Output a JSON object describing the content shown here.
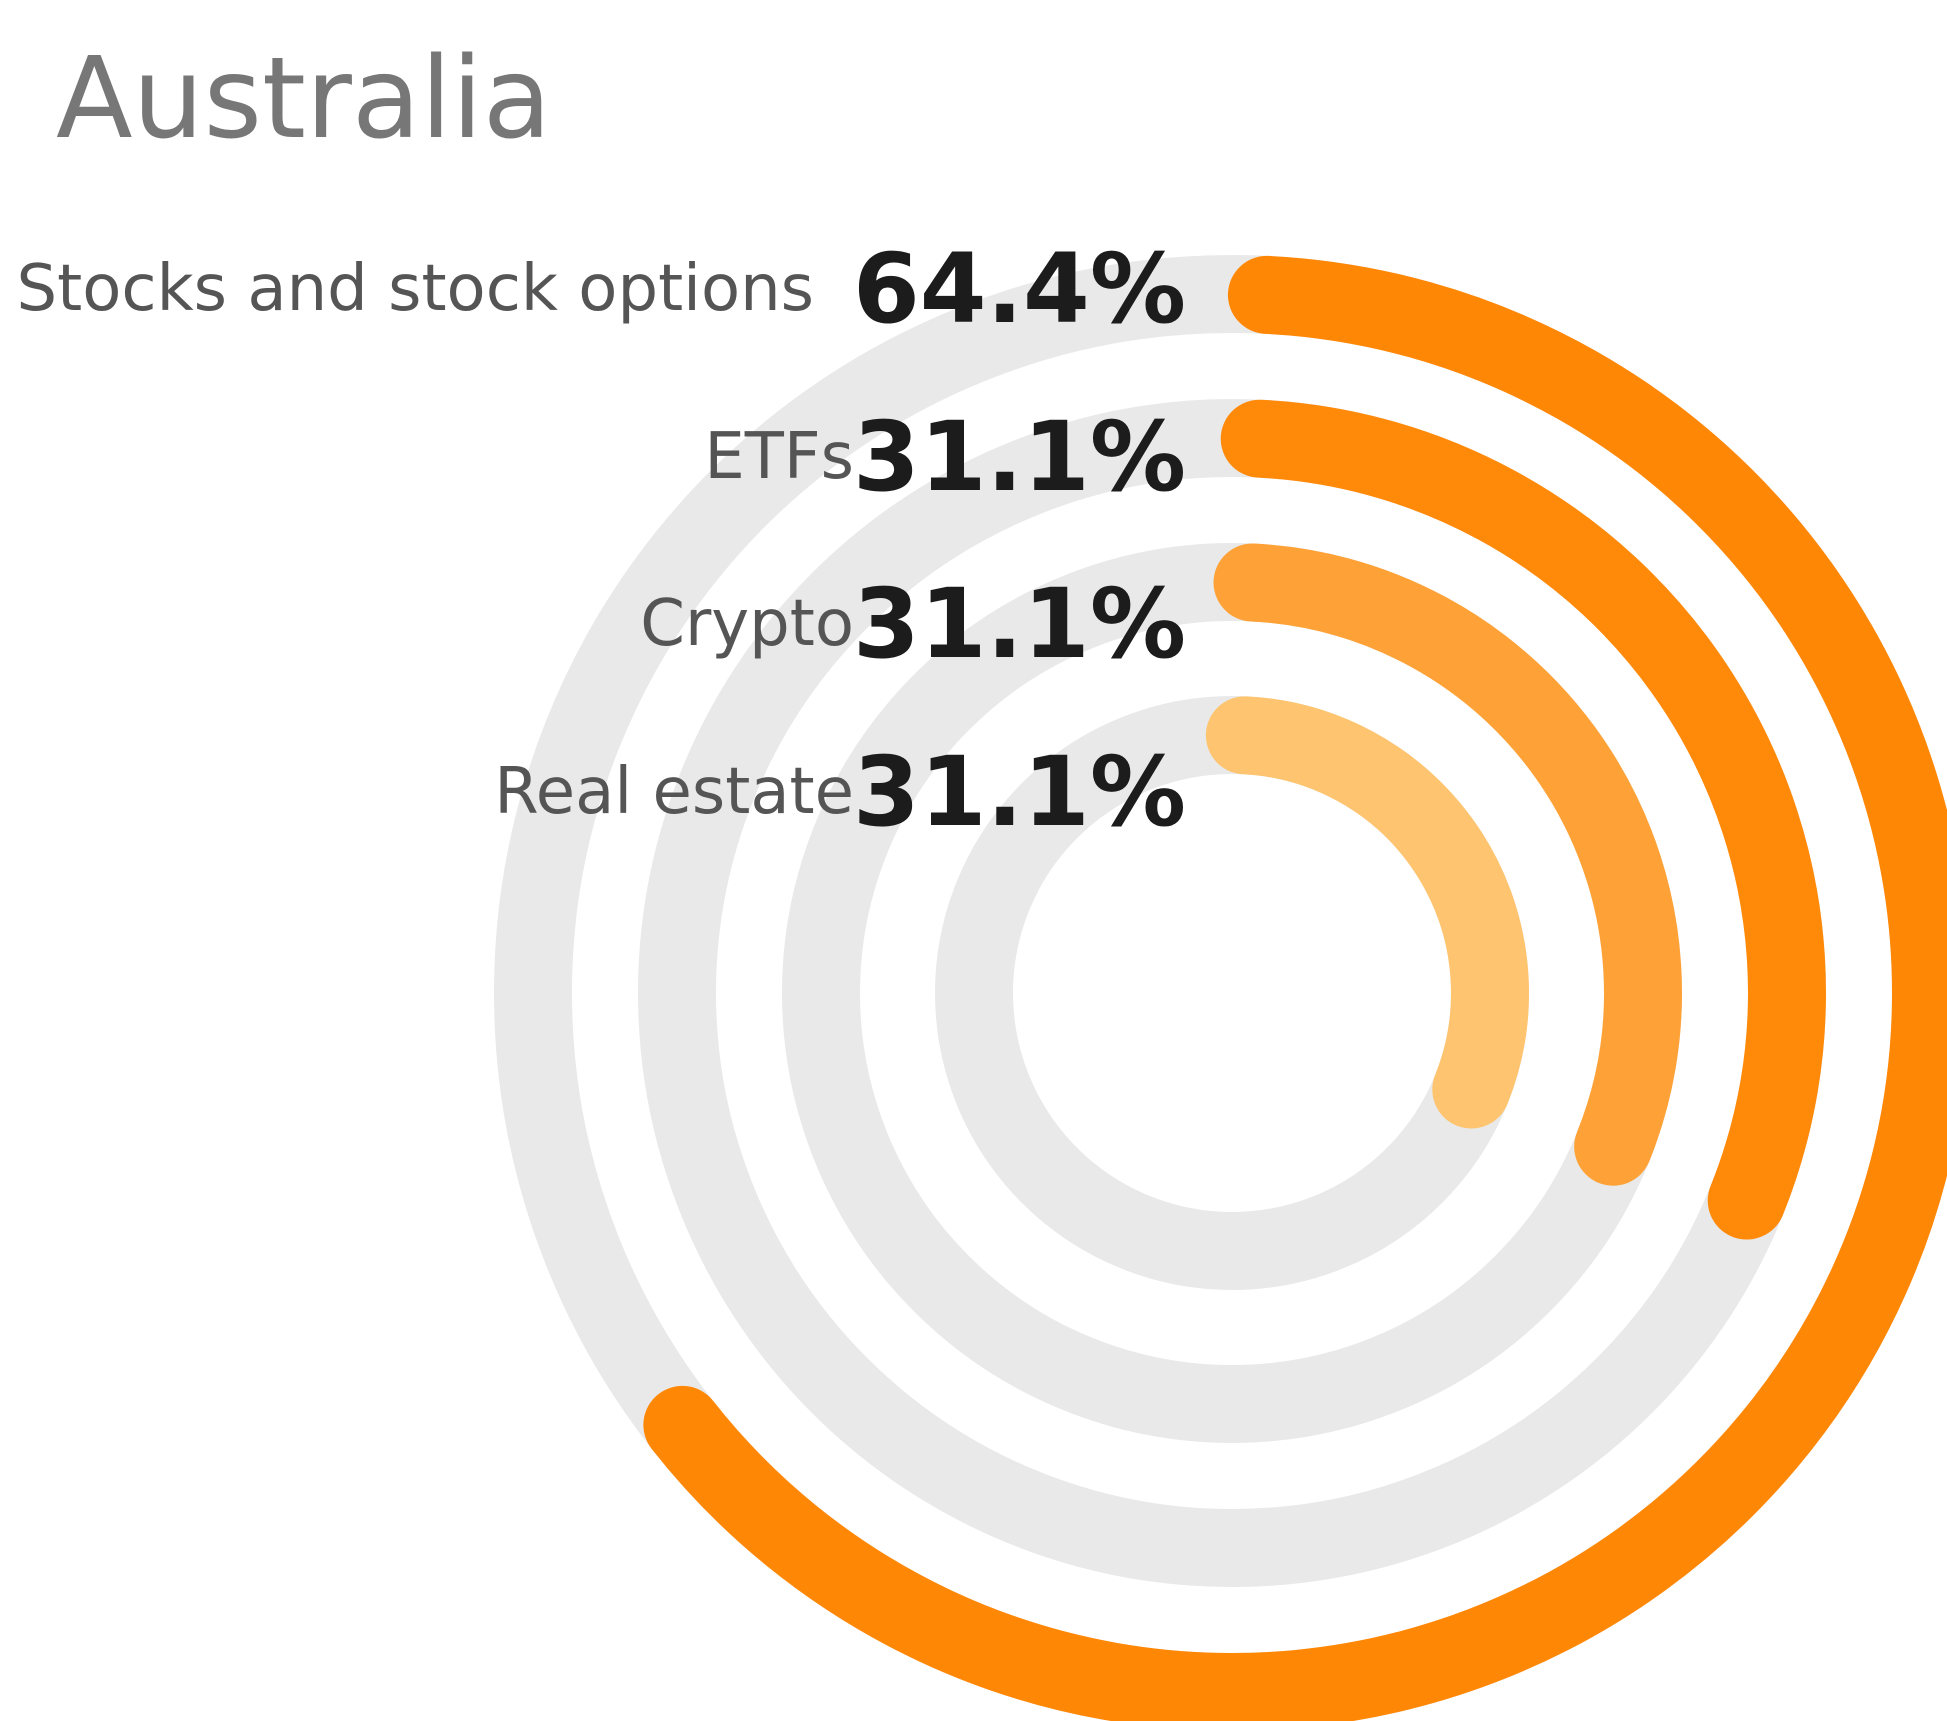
{
  "chart_data": {
    "type": "radial_bar",
    "title": "Australia",
    "categories": [
      "Stocks and stock options",
      "ETFs",
      "Crypto",
      "Real estate"
    ],
    "values": [
      64.4,
      31.1,
      31.1,
      31.1
    ],
    "value_labels": [
      "64.4%",
      "31.1%",
      "31.1%",
      "31.1%"
    ],
    "colors": [
      "#ff8706",
      "#ff8a0a",
      "#fea237",
      "#fec46f"
    ],
    "track_color": "#e8e9e8",
    "ylim": [
      0,
      100
    ]
  }
}
